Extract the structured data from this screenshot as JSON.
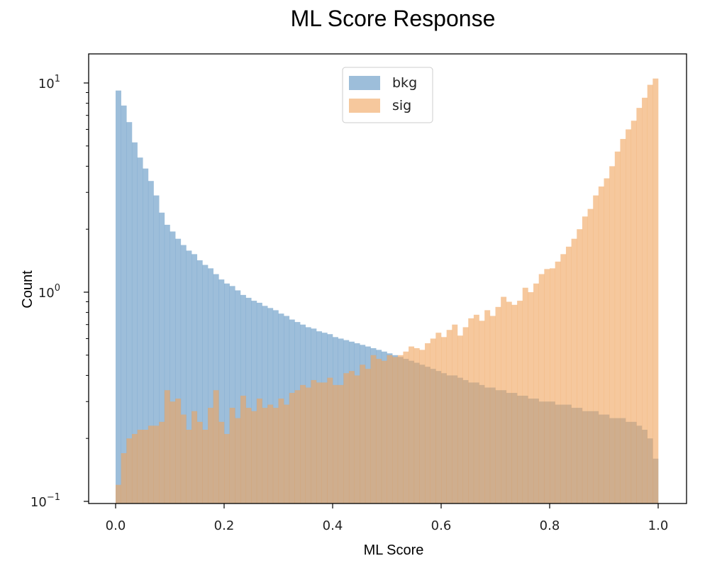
{
  "chart_data": {
    "type": "histogram",
    "title": "ML Score Response",
    "xlabel": "ML Score",
    "ylabel": "Count",
    "xlim": [
      0.0,
      1.0
    ],
    "ylim": [
      0.1,
      12
    ],
    "yscale": "log",
    "bins": 100,
    "xticks": [
      "0.0",
      "0.2",
      "0.4",
      "0.6",
      "0.8",
      "1.0"
    ],
    "yticks": [
      {
        "base": "10",
        "exp": "1",
        "value": 10
      },
      {
        "base": "10",
        "exp": "0",
        "value": 1
      },
      {
        "base": "10",
        "exp": "−1",
        "value": 0.1
      }
    ],
    "legend_position": "top-center",
    "series": [
      {
        "name": "bkg",
        "color": "#5b93c2",
        "values": [
          9.2,
          7.8,
          6.5,
          5.2,
          4.4,
          3.9,
          3.4,
          2.9,
          2.4,
          2.1,
          1.95,
          1.8,
          1.68,
          1.58,
          1.52,
          1.42,
          1.35,
          1.3,
          1.22,
          1.15,
          1.1,
          1.07,
          1.02,
          0.97,
          0.94,
          0.91,
          0.89,
          0.86,
          0.84,
          0.82,
          0.79,
          0.77,
          0.74,
          0.72,
          0.7,
          0.68,
          0.67,
          0.65,
          0.64,
          0.63,
          0.61,
          0.6,
          0.59,
          0.58,
          0.57,
          0.56,
          0.55,
          0.54,
          0.53,
          0.52,
          0.51,
          0.5,
          0.49,
          0.48,
          0.47,
          0.46,
          0.45,
          0.44,
          0.43,
          0.42,
          0.41,
          0.4,
          0.4,
          0.39,
          0.38,
          0.37,
          0.37,
          0.36,
          0.35,
          0.35,
          0.34,
          0.34,
          0.33,
          0.33,
          0.32,
          0.32,
          0.31,
          0.31,
          0.3,
          0.3,
          0.3,
          0.29,
          0.29,
          0.29,
          0.28,
          0.28,
          0.27,
          0.27,
          0.27,
          0.26,
          0.26,
          0.25,
          0.25,
          0.25,
          0.24,
          0.24,
          0.23,
          0.22,
          0.2,
          0.16
        ]
      },
      {
        "name": "sig",
        "color": "#f0a45c",
        "values": [
          0.12,
          0.17,
          0.2,
          0.21,
          0.22,
          0.22,
          0.23,
          0.23,
          0.24,
          0.34,
          0.3,
          0.31,
          0.26,
          0.22,
          0.27,
          0.24,
          0.22,
          0.28,
          0.34,
          0.24,
          0.21,
          0.28,
          0.25,
          0.32,
          0.28,
          0.27,
          0.31,
          0.28,
          0.29,
          0.28,
          0.31,
          0.29,
          0.33,
          0.34,
          0.36,
          0.35,
          0.38,
          0.37,
          0.37,
          0.39,
          0.36,
          0.36,
          0.41,
          0.42,
          0.4,
          0.45,
          0.43,
          0.5,
          0.48,
          0.47,
          0.5,
          0.49,
          0.5,
          0.52,
          0.55,
          0.54,
          0.53,
          0.57,
          0.6,
          0.64,
          0.61,
          0.66,
          0.7,
          0.62,
          0.68,
          0.75,
          0.78,
          0.73,
          0.82,
          0.77,
          0.85,
          0.95,
          0.9,
          0.87,
          0.91,
          1.05,
          1.0,
          1.1,
          1.22,
          1.29,
          1.3,
          1.4,
          1.52,
          1.65,
          1.8,
          2.0,
          2.3,
          2.5,
          2.9,
          3.2,
          3.5,
          4.0,
          4.7,
          5.4,
          6.0,
          6.6,
          7.6,
          8.5,
          9.8,
          10.5
        ]
      }
    ]
  }
}
